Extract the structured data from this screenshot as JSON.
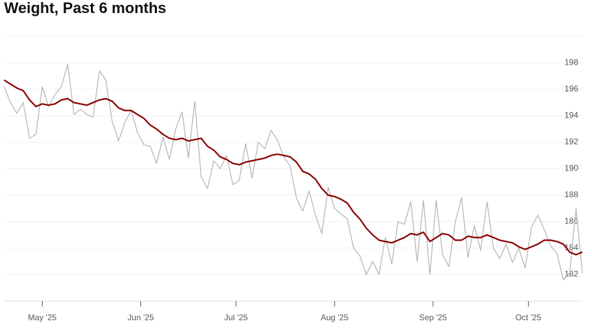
{
  "chart_data": {
    "type": "line",
    "title": "Weight, Past 6 months",
    "x": [
      0,
      2,
      4,
      6,
      8,
      10,
      12,
      14,
      16,
      18,
      20,
      22,
      24,
      26,
      28,
      30,
      32,
      34,
      36,
      38,
      40,
      42,
      44,
      46,
      48,
      50,
      52,
      54,
      56,
      58,
      60,
      62,
      64,
      66,
      68,
      70,
      72,
      74,
      76,
      78,
      80,
      82,
      84,
      86,
      88,
      90,
      92,
      94,
      96,
      98,
      100,
      102,
      104,
      106,
      108,
      110,
      112,
      114,
      116,
      118,
      120,
      122,
      124,
      126,
      128,
      130,
      132,
      134,
      136,
      138,
      140,
      142,
      144,
      146,
      148,
      150,
      152,
      154,
      156,
      158,
      160,
      162,
      164,
      166,
      168,
      170,
      172,
      174,
      176,
      178,
      180,
      182
    ],
    "xlim": [
      0,
      182
    ],
    "xticks": [
      {
        "value": 12,
        "label": "May '25"
      },
      {
        "value": 43,
        "label": "Jun '25"
      },
      {
        "value": 73,
        "label": "Jul '25"
      },
      {
        "value": 104,
        "label": "Aug '25"
      },
      {
        "value": 135,
        "label": "Sep '25"
      },
      {
        "value": 165,
        "label": "Oct '25"
      }
    ],
    "ylim": [
      180,
      200
    ],
    "yticks": [
      182,
      184,
      186,
      188,
      190,
      192,
      194,
      196,
      198
    ],
    "grid": true,
    "series": [
      {
        "color": "#b3b3b3",
        "values": [
          196.2,
          195.0,
          194.2,
          195.0,
          192.3,
          192.6,
          196.2,
          194.7,
          195.6,
          196.2,
          197.9,
          194.1,
          194.5,
          194.1,
          193.9,
          197.4,
          196.7,
          193.6,
          192.1,
          193.5,
          194.4,
          192.7,
          191.8,
          191.7,
          190.4,
          192.4,
          190.7,
          193.0,
          194.3,
          190.8,
          195.1,
          189.4,
          188.5,
          190.6,
          190.0,
          191.0,
          188.8,
          189.1,
          191.9,
          189.3,
          192.0,
          191.5,
          192.9,
          192.2,
          190.9,
          190.2,
          187.8,
          186.8,
          188.3,
          186.5,
          185.1,
          188.6,
          187.0,
          186.6,
          186.2,
          184.0,
          183.4,
          182.0,
          183.0,
          182.0,
          184.8,
          182.8,
          186.0,
          185.8,
          187.5,
          183.0,
          187.6,
          182.0,
          187.6,
          183.5,
          182.6,
          186.0,
          187.8,
          183.3,
          185.7,
          183.8,
          187.5,
          184.0,
          183.2,
          184.3,
          182.9,
          184.0,
          182.5,
          185.6,
          186.5,
          185.4,
          184.2,
          183.6,
          181.6,
          182.1,
          187.0,
          182.1
        ]
      },
      {
        "color": "#8b0000",
        "values": [
          196.7,
          196.4,
          196.1,
          195.9,
          195.2,
          194.7,
          194.9,
          194.8,
          194.9,
          195.2,
          195.3,
          195.0,
          194.9,
          194.8,
          195.0,
          195.2,
          195.3,
          195.1,
          194.6,
          194.4,
          194.4,
          194.1,
          193.8,
          193.3,
          193.0,
          192.6,
          192.3,
          192.2,
          192.3,
          192.1,
          192.2,
          192.3,
          191.7,
          191.4,
          190.9,
          190.7,
          190.4,
          190.3,
          190.5,
          190.6,
          190.7,
          190.8,
          191.0,
          191.1,
          191.0,
          190.9,
          190.5,
          189.8,
          189.6,
          189.2,
          188.5,
          188.0,
          187.9,
          187.7,
          187.4,
          186.7,
          186.2,
          185.5,
          185.0,
          184.6,
          184.5,
          184.4,
          184.6,
          184.8,
          185.1,
          185.0,
          185.2,
          184.5,
          184.8,
          185.1,
          185.0,
          184.6,
          184.6,
          184.9,
          184.8,
          184.8,
          185.0,
          184.8,
          184.6,
          184.5,
          184.4,
          184.1,
          183.9,
          184.1,
          184.3,
          184.6,
          184.6,
          184.5,
          184.3,
          183.7,
          183.5,
          183.7
        ]
      }
    ]
  }
}
